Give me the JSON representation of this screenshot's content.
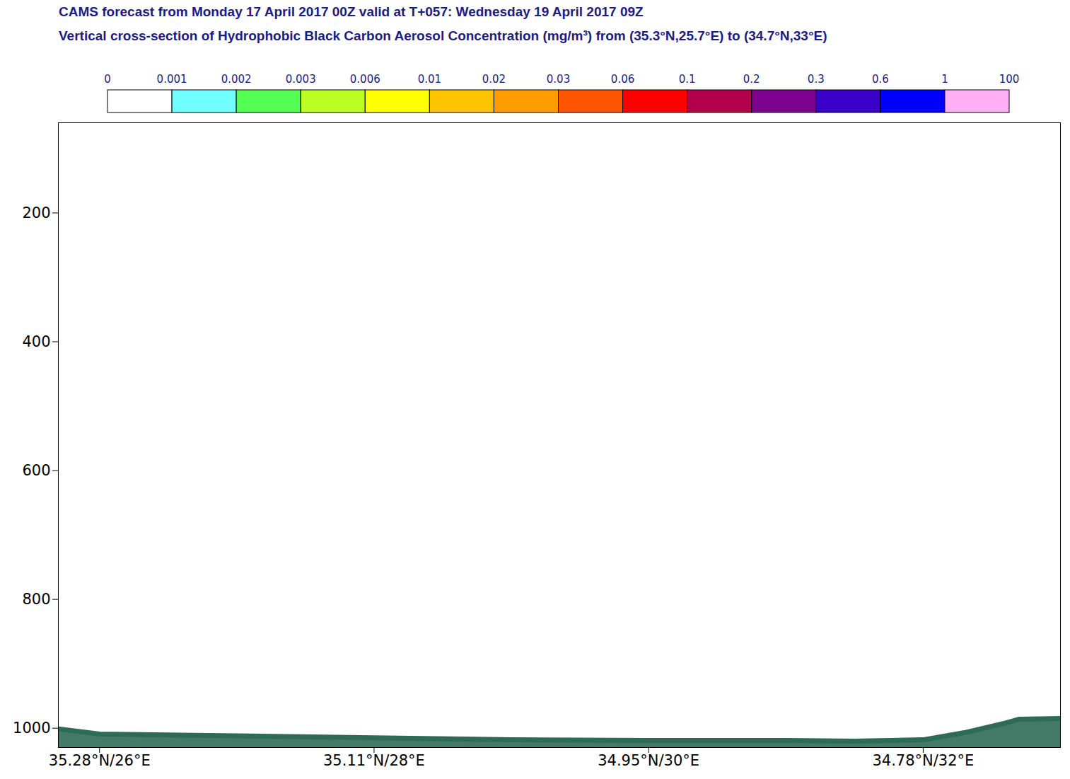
{
  "chart_data": {
    "type": "area",
    "title": "CAMS forecast from Monday 17 April 2017 00Z valid at T+057: Wednesday 19 April 2017 09Z",
    "subtitle": "Vertical cross-section of Hydrophobic Black Carbon Aerosol Concentration (mg/m³) from (35.3°N,25.7°E) to (34.7°N,33°E)",
    "x": [
      25.7,
      26,
      27,
      28,
      29,
      30,
      31,
      31.5,
      32,
      32.3,
      32.6,
      32.7,
      33
    ],
    "series": [
      {
        "color": "#2d6b57",
        "values": [
          1001,
          1009,
          1012,
          1015,
          1018,
          1019,
          1019,
          1020,
          1018,
          1007,
          992,
          986,
          985
        ]
      }
    ],
    "xlim": [
      25.7,
      33
    ],
    "xticks": [
      {
        "value": 26,
        "label": "35.28°N/26°E"
      },
      {
        "value": 28,
        "label": "35.11°N/28°E"
      },
      {
        "value": 30,
        "label": "34.95°N/30°E"
      },
      {
        "value": 32,
        "label": "34.78°N/32°E"
      }
    ],
    "ylim": [
      1030,
      60
    ],
    "yticks": [
      200,
      400,
      600,
      800,
      1000
    ],
    "colorbar": {
      "ticks": [
        0,
        0.001,
        0.002,
        0.003,
        0.006,
        0.01,
        0.02,
        0.03,
        0.06,
        0.1,
        0.2,
        0.3,
        0.6,
        1,
        100
      ],
      "colors": [
        "#ffffff",
        "#70ffff",
        "#54ff54",
        "#bbff22",
        "#ffff00",
        "#ffc400",
        "#ff9c00",
        "#ff5500",
        "#ff0000",
        "#b4004b",
        "#7e008e",
        "#3b00c8",
        "#0000ff",
        "#ffb0f4"
      ]
    }
  }
}
